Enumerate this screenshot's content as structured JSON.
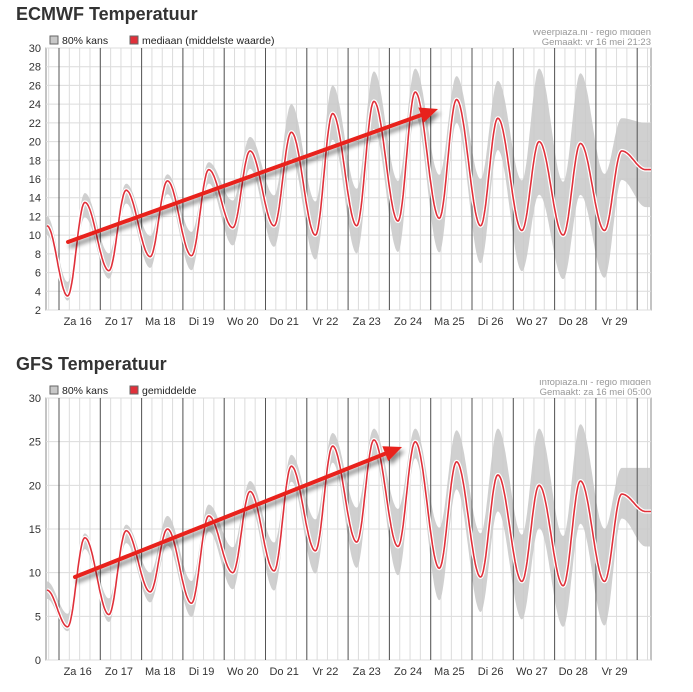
{
  "charts": [
    {
      "id": "ecmwf",
      "title": "ECMWF Temperatuur",
      "source": "Weerplaza.nl - regio midden",
      "made": "Gemaakt: vr 16 mei 21:23",
      "legend": [
        "80% kans",
        "mediaan (middelste waarde)"
      ]
    },
    {
      "id": "gfs",
      "title": "GFS Temperatuur",
      "source": "Infoplaza.nl - regio midden",
      "made": "Gemaakt: za 16 mei 05:00",
      "legend": [
        "80% kans",
        "gemiddelde"
      ]
    }
  ],
  "colors": {
    "median": "#e0303a",
    "band": "#c8c8c8",
    "arrow": "#e8201c",
    "grid": "#dcdcdc",
    "day_line": "#555555"
  },
  "chart_data": [
    {
      "type": "area",
      "title": "ECMWF Temperatuur",
      "categories": [
        "Za 16",
        "Zo 17",
        "Ma 18",
        "Di 19",
        "Wo 20",
        "Do 21",
        "Vr 22",
        "Za 23",
        "Zo 24",
        "Ma 25",
        "Di 26",
        "Wo 27",
        "Do 28",
        "Vr 29"
      ],
      "ylim": [
        2,
        30
      ],
      "yticks": [
        2,
        4,
        6,
        8,
        10,
        12,
        14,
        16,
        18,
        20,
        22,
        24,
        26,
        28,
        30
      ],
      "series": [
        {
          "name": "mediaan (middelste waarde)",
          "daily_max": [
            13.5,
            14.8,
            15.8,
            17.0,
            19.0,
            21.0,
            23.0,
            24.3,
            25.3,
            24.5,
            22.5,
            20.0,
            19.8,
            19.0
          ]
        },
        {
          "name": "80% kans",
          "daily_max_high": [
            14.5,
            15.5,
            16.5,
            17.8,
            20.5,
            24.0,
            26.0,
            27.5,
            27.8,
            27.0,
            26.5,
            27.8,
            27.3,
            22.5
          ]
        }
      ],
      "daily_min": [
        3.5,
        6.2,
        7.7,
        7.8,
        10.8,
        11.0,
        10.0,
        11.0,
        11.5,
        11.8,
        11.0,
        10.5,
        10.0,
        10.5
      ],
      "start_value": 11,
      "end_value": 17,
      "grid": true,
      "legend_position": "top-left"
    },
    {
      "type": "area",
      "title": "GFS Temperatuur",
      "categories": [
        "Za 16",
        "Zo 17",
        "Ma 18",
        "Di 19",
        "Wo 20",
        "Do 21",
        "Vr 22",
        "Za 23",
        "Zo 24",
        "Ma 25",
        "Di 26",
        "Wo 27",
        "Do 28",
        "Vr 29"
      ],
      "ylim": [
        0,
        30
      ],
      "yticks": [
        0,
        5,
        10,
        15,
        20,
        25,
        30
      ],
      "series": [
        {
          "name": "gemiddelde",
          "daily_max": [
            14.0,
            14.8,
            15.0,
            16.5,
            19.3,
            22.2,
            24.5,
            25.2,
            25.0,
            22.7,
            21.2,
            20.0,
            20.5,
            19.0
          ]
        },
        {
          "name": "80% kans",
          "daily_max_high": [
            14.5,
            15.5,
            16.5,
            17.8,
            20.5,
            23.5,
            26.0,
            26.5,
            26.5,
            26.3,
            26.5,
            26.5,
            27.0,
            22.0
          ]
        }
      ],
      "daily_min": [
        3.8,
        5.2,
        7.8,
        6.5,
        10.0,
        10.2,
        12.5,
        13.5,
        13.0,
        10.5,
        9.5,
        9.0,
        8.5,
        9.0
      ],
      "start_value": 8,
      "end_value": 17,
      "grid": true,
      "legend_position": "top-left"
    }
  ]
}
